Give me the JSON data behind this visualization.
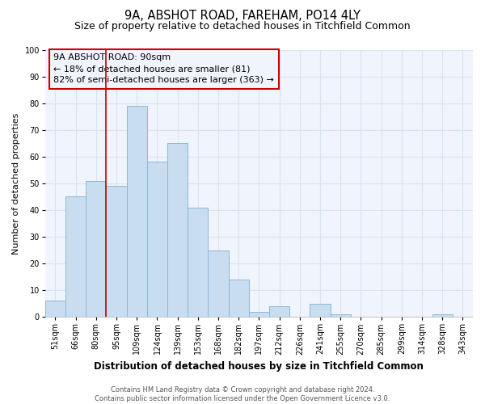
{
  "title": "9A, ABSHOT ROAD, FAREHAM, PO14 4LY",
  "subtitle": "Size of property relative to detached houses in Titchfield Common",
  "xlabel": "Distribution of detached houses by size in Titchfield Common",
  "ylabel": "Number of detached properties",
  "categories": [
    "51sqm",
    "66sqm",
    "80sqm",
    "95sqm",
    "109sqm",
    "124sqm",
    "139sqm",
    "153sqm",
    "168sqm",
    "182sqm",
    "197sqm",
    "212sqm",
    "226sqm",
    "241sqm",
    "255sqm",
    "270sqm",
    "285sqm",
    "299sqm",
    "314sqm",
    "328sqm",
    "343sqm"
  ],
  "values": [
    6,
    45,
    51,
    49,
    79,
    58,
    65,
    41,
    25,
    14,
    2,
    4,
    0,
    5,
    1,
    0,
    0,
    0,
    0,
    1,
    0
  ],
  "bar_color": "#c8ddf0",
  "bar_edge_color": "#8ab8d8",
  "vline_color": "#cc0000",
  "vline_x_index": 2.5,
  "annotation_text_line1": "9A ABSHOT ROAD: 90sqm",
  "annotation_text_line2": "← 18% of detached houses are smaller (81)",
  "annotation_text_line3": "82% of semi-detached houses are larger (363) →",
  "box_edge_color": "#cc0000",
  "ylim": [
    0,
    100
  ],
  "yticks": [
    0,
    10,
    20,
    30,
    40,
    50,
    60,
    70,
    80,
    90,
    100
  ],
  "footnote": "Contains HM Land Registry data © Crown copyright and database right 2024.\nContains public sector information licensed under the Open Government Licence v3.0.",
  "bg_color": "#ffffff",
  "plot_bg_color": "#f0f4fc",
  "grid_color": "#d8e4f0",
  "title_fontsize": 10.5,
  "subtitle_fontsize": 9,
  "xlabel_fontsize": 8.5,
  "ylabel_fontsize": 8,
  "tick_fontsize": 7,
  "annotation_fontsize": 8,
  "footnote_fontsize": 6
}
